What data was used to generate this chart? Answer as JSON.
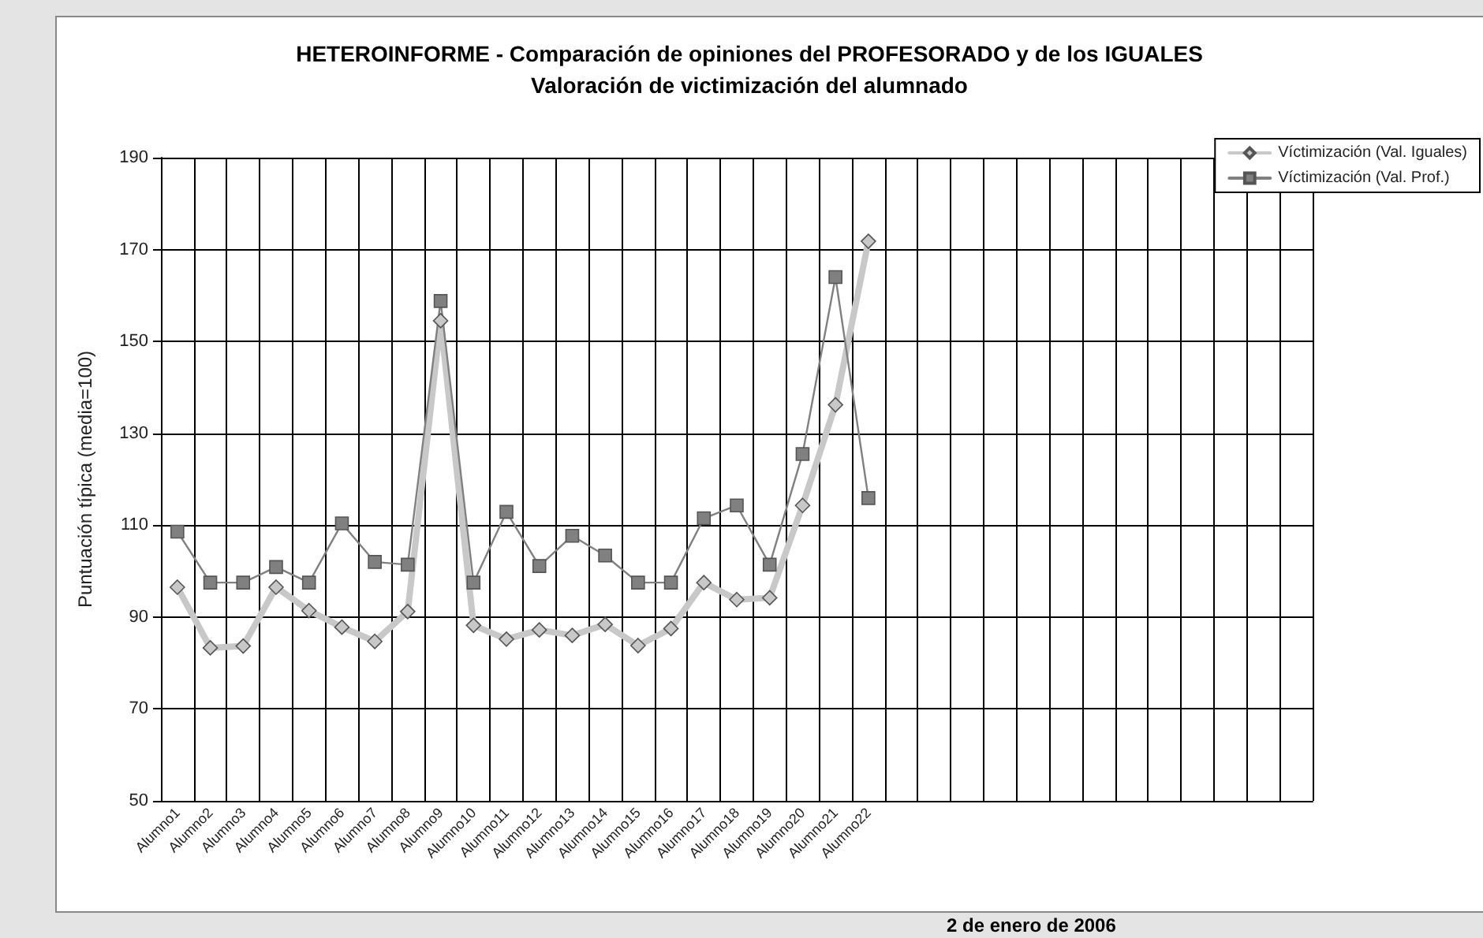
{
  "chart_data": {
    "type": "line",
    "title": "HETEROINFORME - Comparación de opiniones del PROFESORADO y de los IGUALES",
    "subtitle": "Valoración de victimización del alumnado",
    "ylabel": "Puntuación típica (media=100)",
    "annotations": [
      "2 de enero de 2006"
    ],
    "categories": [
      "Alumno1",
      "Alumno2",
      "Alumno3",
      "Alumno4",
      "Alumno5",
      "Alumno6",
      "Alumno7",
      "Alumno8",
      "Alumno9",
      "Alumno10",
      "Alumno11",
      "Alumno12",
      "Alumno13",
      "Alumno14",
      "Alumno15",
      "Alumno16",
      "Alumno17",
      "Alumno18",
      "Alumno19",
      "Alumno20",
      "Alumno21",
      "Alumno22",
      null,
      null,
      null,
      null,
      null,
      null,
      null,
      null,
      null,
      null,
      null,
      null,
      null
    ],
    "series": [
      {
        "name": "Víctimización (Val. Iguales)",
        "color": "#c8c8c8",
        "marker": "diamond",
        "values": [
          96.5,
          83.3,
          83.7,
          96.5,
          91.4,
          87.8,
          84.7,
          91.2,
          154.5,
          88.2,
          85.2,
          87.2,
          86.0,
          88.4,
          83.8,
          87.5,
          97.5,
          93.8,
          94.2,
          114.3,
          136.2,
          171.8,
          null,
          null,
          null,
          null,
          null,
          null,
          null,
          null,
          null,
          null,
          null,
          null,
          null
        ]
      },
      {
        "name": "Víctimización (Val. Prof.)",
        "color": "#808080",
        "marker": "square",
        "values": [
          108.6,
          97.5,
          97.5,
          100.9,
          97.5,
          110.4,
          102.0,
          101.4,
          158.8,
          97.5,
          112.9,
          101.1,
          107.7,
          103.4,
          97.5,
          97.5,
          111.5,
          114.3,
          101.4,
          125.5,
          164.0,
          115.9,
          null,
          null,
          null,
          null,
          null,
          null,
          null,
          null,
          null,
          null,
          null,
          null,
          null
        ]
      }
    ],
    "ylim": [
      50,
      190
    ],
    "yticks": [
      50,
      70,
      90,
      110,
      130,
      150,
      170,
      190
    ],
    "grid": true,
    "legend": "top right",
    "line_style": "solid"
  }
}
